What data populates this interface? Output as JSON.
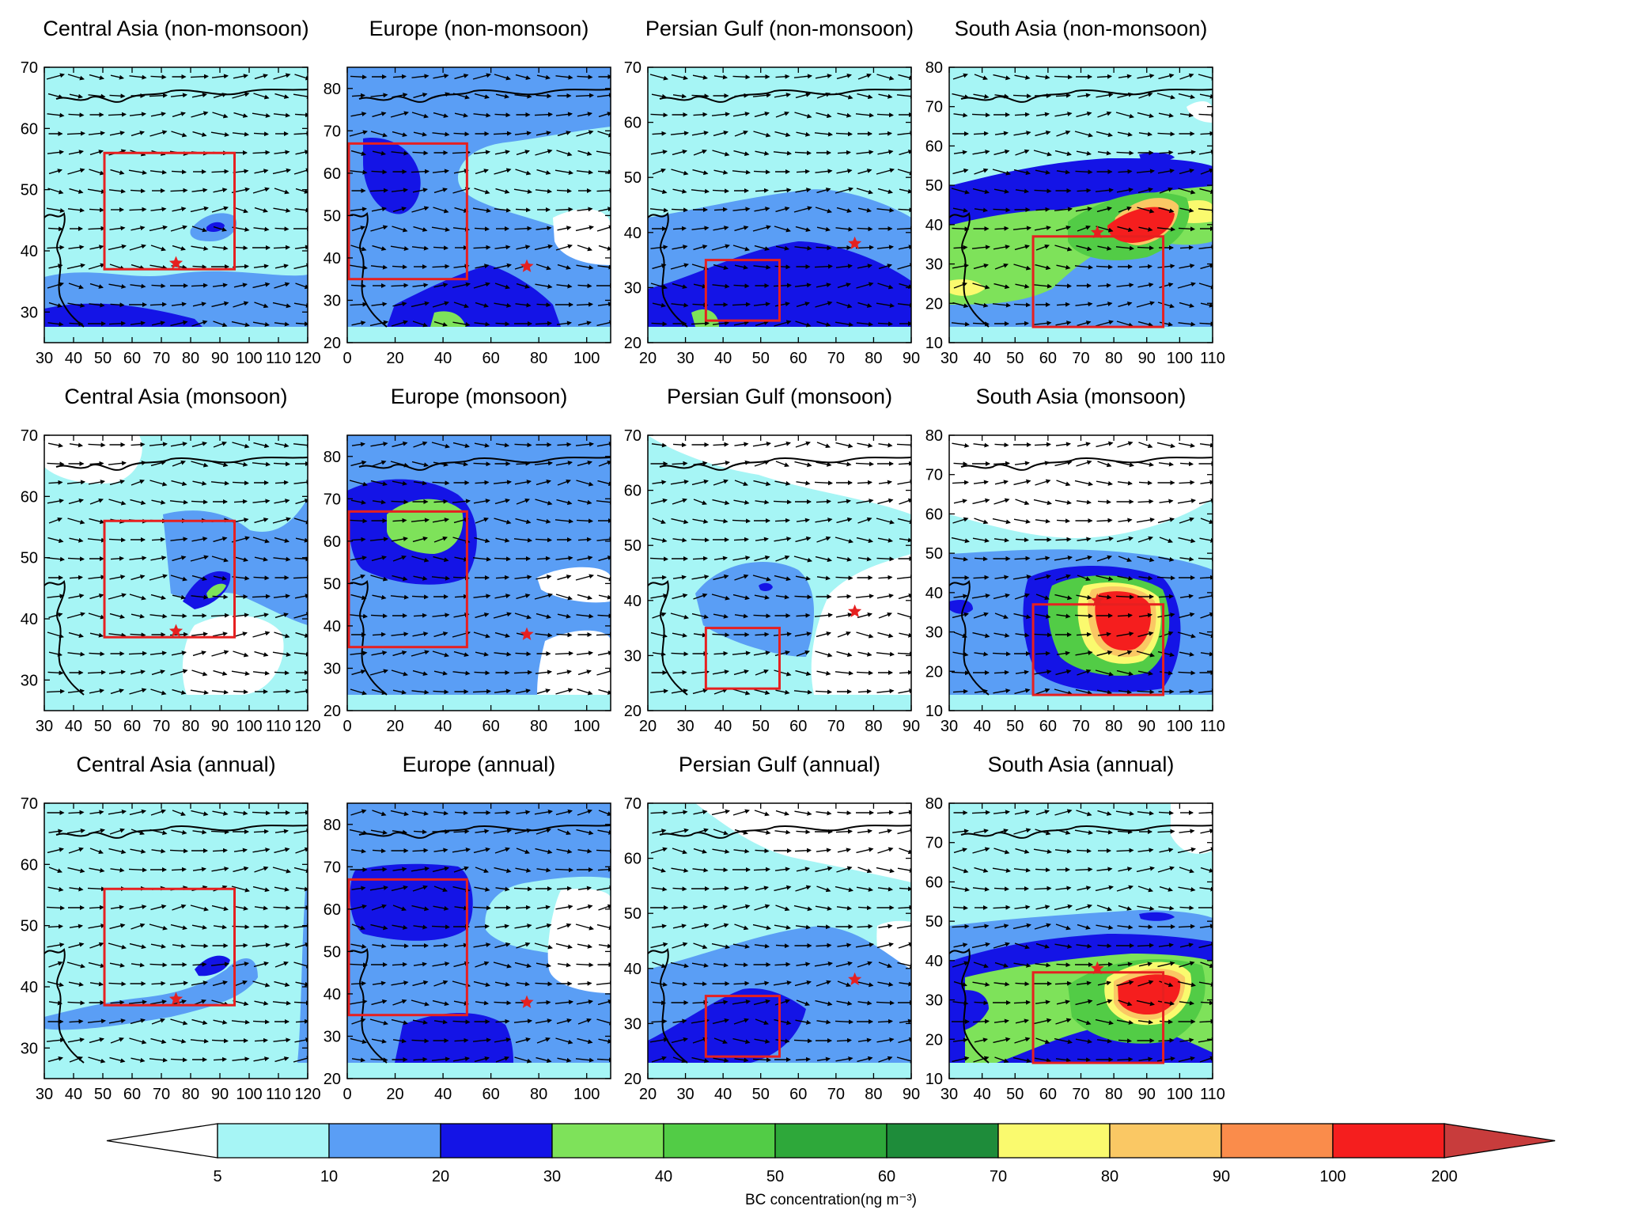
{
  "figure": {
    "panels": [
      {
        "title": "Central Asia  (non-monsoon)",
        "region": "Central Asia",
        "season": "non-monsoon",
        "x_ticks": [
          "30",
          "40",
          "50",
          "60",
          "70",
          "80",
          "90",
          "100",
          "110",
          "120"
        ],
        "x_range": [
          30,
          120
        ],
        "y_ticks": [
          "30",
          "40",
          "50",
          "60",
          "70"
        ],
        "y_range": [
          25,
          70
        ],
        "y_axis_side": "left",
        "source_box": {
          "lon": [
            50,
            95
          ],
          "lat": [
            37,
            56
          ]
        },
        "star": {
          "lon": 75,
          "lat": 38
        }
      },
      {
        "title": "Europe   (non-monsoon)",
        "region": "Europe",
        "season": "non-monsoon",
        "x_ticks": [
          "0",
          "20",
          "40",
          "60",
          "80",
          "100"
        ],
        "x_range": [
          0,
          110
        ],
        "y_ticks": [
          "20",
          "30",
          "40",
          "50",
          "60",
          "70",
          "80"
        ],
        "y_range": [
          20,
          85
        ],
        "y_axis_side": "left",
        "source_box": {
          "lon": [
            0,
            50
          ],
          "lat": [
            35,
            67
          ]
        },
        "star": {
          "lon": 75,
          "lat": 38
        }
      },
      {
        "title": "Persian Gulf  (non-monsoon)",
        "region": "Persian Gulf",
        "season": "non-monsoon",
        "x_ticks": [
          "20",
          "30",
          "40",
          "50",
          "60",
          "70",
          "80",
          "90"
        ],
        "x_range": [
          20,
          90
        ],
        "y_ticks": [
          "20",
          "30",
          "40",
          "50",
          "60",
          "70"
        ],
        "y_range": [
          20,
          70
        ],
        "y_axis_side": "left",
        "source_box": {
          "lon": [
            35,
            55
          ],
          "lat": [
            24,
            35
          ]
        },
        "star": {
          "lon": 75,
          "lat": 38
        }
      },
      {
        "title": "South Asia  (non-monsoon)",
        "region": "South Asia",
        "season": "non-monsoon",
        "x_ticks": [
          "30",
          "40",
          "50",
          "60",
          "70",
          "80",
          "90",
          "100",
          "110"
        ],
        "x_range": [
          30,
          110
        ],
        "y_ticks": [
          "10",
          "20",
          "30",
          "40",
          "50",
          "60",
          "70",
          "80"
        ],
        "y_range": [
          10,
          80
        ],
        "y_axis_side": "left",
        "source_box": {
          "lon": [
            55,
            95
          ],
          "lat": [
            14,
            37
          ]
        },
        "star": {
          "lon": 75,
          "lat": 38
        }
      },
      {
        "title": "Central Asia (monsoon)",
        "region": "Central Asia",
        "season": "monsoon",
        "x_ticks": [
          "30",
          "40",
          "50",
          "60",
          "70",
          "80",
          "90",
          "100",
          "110",
          "120"
        ],
        "x_range": [
          30,
          120
        ],
        "y_ticks": [
          "30",
          "40",
          "50",
          "60",
          "70"
        ],
        "y_range": [
          25,
          70
        ],
        "y_axis_side": "left",
        "source_box": {
          "lon": [
            50,
            95
          ],
          "lat": [
            37,
            56
          ]
        },
        "star": {
          "lon": 75,
          "lat": 38
        }
      },
      {
        "title": "Europe  (monsoon)",
        "region": "Europe",
        "season": "monsoon",
        "x_ticks": [
          "0",
          "20",
          "40",
          "60",
          "80",
          "100"
        ],
        "x_range": [
          0,
          110
        ],
        "y_ticks": [
          "20",
          "30",
          "40",
          "50",
          "60",
          "70",
          "80"
        ],
        "y_range": [
          20,
          85
        ],
        "y_axis_side": "left",
        "source_box": {
          "lon": [
            0,
            50
          ],
          "lat": [
            35,
            67
          ]
        },
        "star": {
          "lon": 75,
          "lat": 38
        }
      },
      {
        "title": "Persian Gulf  (monsoon)",
        "region": "Persian Gulf",
        "season": "monsoon",
        "x_ticks": [
          "20",
          "30",
          "40",
          "50",
          "60",
          "70",
          "80",
          "90"
        ],
        "x_range": [
          20,
          90
        ],
        "y_ticks": [
          "20",
          "30",
          "40",
          "50",
          "60",
          "70"
        ],
        "y_range": [
          20,
          70
        ],
        "y_axis_side": "left",
        "source_box": {
          "lon": [
            35,
            55
          ],
          "lat": [
            24,
            35
          ]
        },
        "star": {
          "lon": 75,
          "lat": 38
        }
      },
      {
        "title": "South Asia  (monsoon)",
        "region": "South Asia",
        "season": "monsoon",
        "x_ticks": [
          "30",
          "40",
          "50",
          "60",
          "70",
          "80",
          "90",
          "100",
          "110"
        ],
        "x_range": [
          30,
          110
        ],
        "y_ticks": [
          "10",
          "20",
          "30",
          "40",
          "50",
          "60",
          "70",
          "80"
        ],
        "y_range": [
          10,
          80
        ],
        "y_axis_side": "left",
        "source_box": {
          "lon": [
            55,
            95
          ],
          "lat": [
            14,
            37
          ]
        },
        "star": {
          "lon": 75,
          "lat": 38
        }
      },
      {
        "title": "Central Asia   (annual)",
        "region": "Central Asia",
        "season": "annual",
        "x_ticks": [
          "30",
          "40",
          "50",
          "60",
          "70",
          "80",
          "90",
          "100",
          "110",
          "120"
        ],
        "x_range": [
          30,
          120
        ],
        "y_ticks": [
          "30",
          "40",
          "50",
          "60",
          "70"
        ],
        "y_range": [
          25,
          70
        ],
        "y_axis_side": "left",
        "source_box": {
          "lon": [
            50,
            95
          ],
          "lat": [
            37,
            56
          ]
        },
        "star": {
          "lon": 75,
          "lat": 38
        }
      },
      {
        "title": "Europe  (annual)",
        "region": "Europe",
        "season": "annual",
        "x_ticks": [
          "0",
          "20",
          "40",
          "60",
          "80",
          "100"
        ],
        "x_range": [
          0,
          110
        ],
        "y_ticks": [
          "20",
          "30",
          "40",
          "50",
          "60",
          "70",
          "80"
        ],
        "y_range": [
          20,
          85
        ],
        "y_axis_side": "left",
        "source_box": {
          "lon": [
            0,
            50
          ],
          "lat": [
            35,
            67
          ]
        },
        "star": {
          "lon": 75,
          "lat": 38
        }
      },
      {
        "title": "Persian Gulf  (annual)",
        "region": "Persian Gulf",
        "season": "annual",
        "x_ticks": [
          "20",
          "30",
          "40",
          "50",
          "60",
          "70",
          "80",
          "90"
        ],
        "x_range": [
          20,
          90
        ],
        "y_ticks": [
          "20",
          "30",
          "40",
          "50",
          "60",
          "70"
        ],
        "y_range": [
          20,
          70
        ],
        "y_axis_side": "left",
        "source_box": {
          "lon": [
            35,
            55
          ],
          "lat": [
            24,
            35
          ]
        },
        "star": {
          "lon": 75,
          "lat": 38
        }
      },
      {
        "title": "South Asia  (annual)",
        "region": "South Asia",
        "season": "annual",
        "x_ticks": [
          "30",
          "40",
          "50",
          "60",
          "70",
          "80",
          "90",
          "100",
          "110"
        ],
        "x_range": [
          30,
          110
        ],
        "y_ticks": [
          "10",
          "20",
          "30",
          "40",
          "50",
          "60",
          "70",
          "80"
        ],
        "y_range": [
          10,
          80
        ],
        "y_axis_side": "left",
        "source_box": {
          "lon": [
            55,
            95
          ],
          "lat": [
            14,
            37
          ]
        },
        "star": {
          "lon": 75,
          "lat": 38
        }
      }
    ],
    "colorbar": {
      "title": "BC concentration(ng m⁻³)",
      "tick_labels": [
        "5",
        "10",
        "20",
        "30",
        "40",
        "50",
        "60",
        "70",
        "80",
        "90",
        "100",
        "200"
      ],
      "colors": [
        "#ffffff",
        "#a6f5f5",
        "#5a9ef5",
        "#1414e6",
        "#7ee25a",
        "#52cc46",
        "#2ea83a",
        "#1e8c3a",
        "#fafa6e",
        "#fac864",
        "#fa8c4b",
        "#f51e1e",
        "#c83c3c"
      ],
      "extends": "both"
    },
    "colors": {
      "source_box": "#e62020",
      "star": "#e62020",
      "vector": "#000000",
      "coastline": "#000000"
    }
  }
}
